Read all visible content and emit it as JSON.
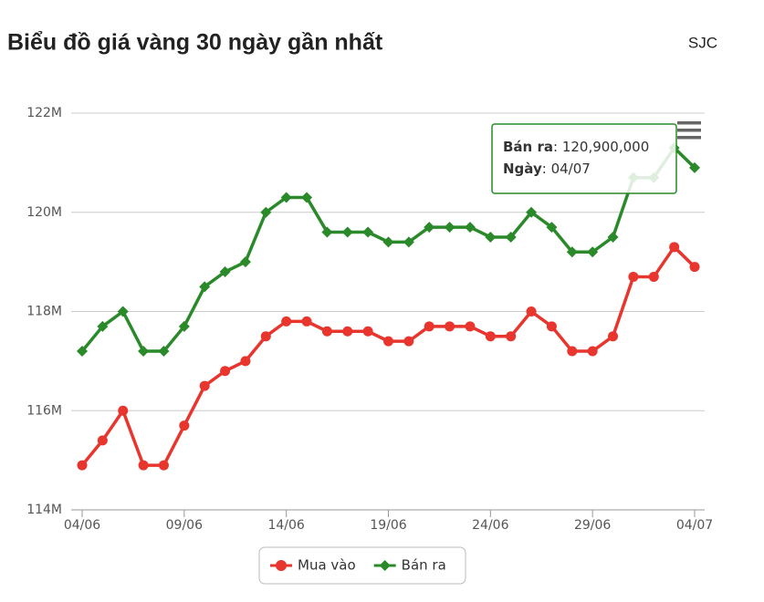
{
  "chart_data": {
    "type": "line",
    "title": "Biểu đồ giá vàng 30 ngày gần nhất",
    "source": "SJC",
    "categories": [
      "04/06",
      null,
      null,
      null,
      null,
      "09/06",
      null,
      null,
      null,
      null,
      "14/06",
      null,
      null,
      null,
      null,
      "19/06",
      null,
      null,
      null,
      null,
      "24/06",
      null,
      null,
      null,
      null,
      "29/06",
      null,
      null,
      null,
      null,
      "04/07"
    ],
    "series": [
      {
        "name": "Mua vào",
        "color": "#e8352e",
        "marker": "circle",
        "values": [
          114900000,
          115400000,
          116000000,
          114900000,
          114900000,
          115700000,
          116500000,
          116800000,
          117000000,
          117500000,
          117800000,
          117800000,
          117600000,
          117600000,
          117600000,
          117400000,
          117400000,
          117700000,
          117700000,
          117700000,
          117500000,
          117500000,
          118000000,
          117700000,
          117200000,
          117200000,
          117500000,
          118700000,
          118700000,
          119300000,
          118900000
        ]
      },
      {
        "name": "Bán ra",
        "color": "#2a8a2a",
        "marker": "diamond",
        "values": [
          117200000,
          117700000,
          118000000,
          117200000,
          117200000,
          117700000,
          118500000,
          118800000,
          119000000,
          120000000,
          120300000,
          120300000,
          119600000,
          119600000,
          119600000,
          119400000,
          119400000,
          119700000,
          119700000,
          119700000,
          119500000,
          119500000,
          120000000,
          119700000,
          119200000,
          119200000,
          119500000,
          120700000,
          120700000,
          121300000,
          120900000
        ]
      }
    ],
    "ylim": [
      114000000,
      122000000
    ],
    "yticks": [
      {
        "value": 114000000,
        "label": "114M"
      },
      {
        "value": 116000000,
        "label": "116M"
      },
      {
        "value": 118000000,
        "label": "118M"
      },
      {
        "value": 120000000,
        "label": "120M"
      },
      {
        "value": 122000000,
        "label": "122M"
      }
    ],
    "grid": true,
    "legend": "bottom",
    "tooltip": {
      "series": "Bán ra",
      "separator": ": ",
      "value": 120900000,
      "value_label": "120,900,000",
      "date_key": "Ngày",
      "date": "04/07"
    }
  }
}
